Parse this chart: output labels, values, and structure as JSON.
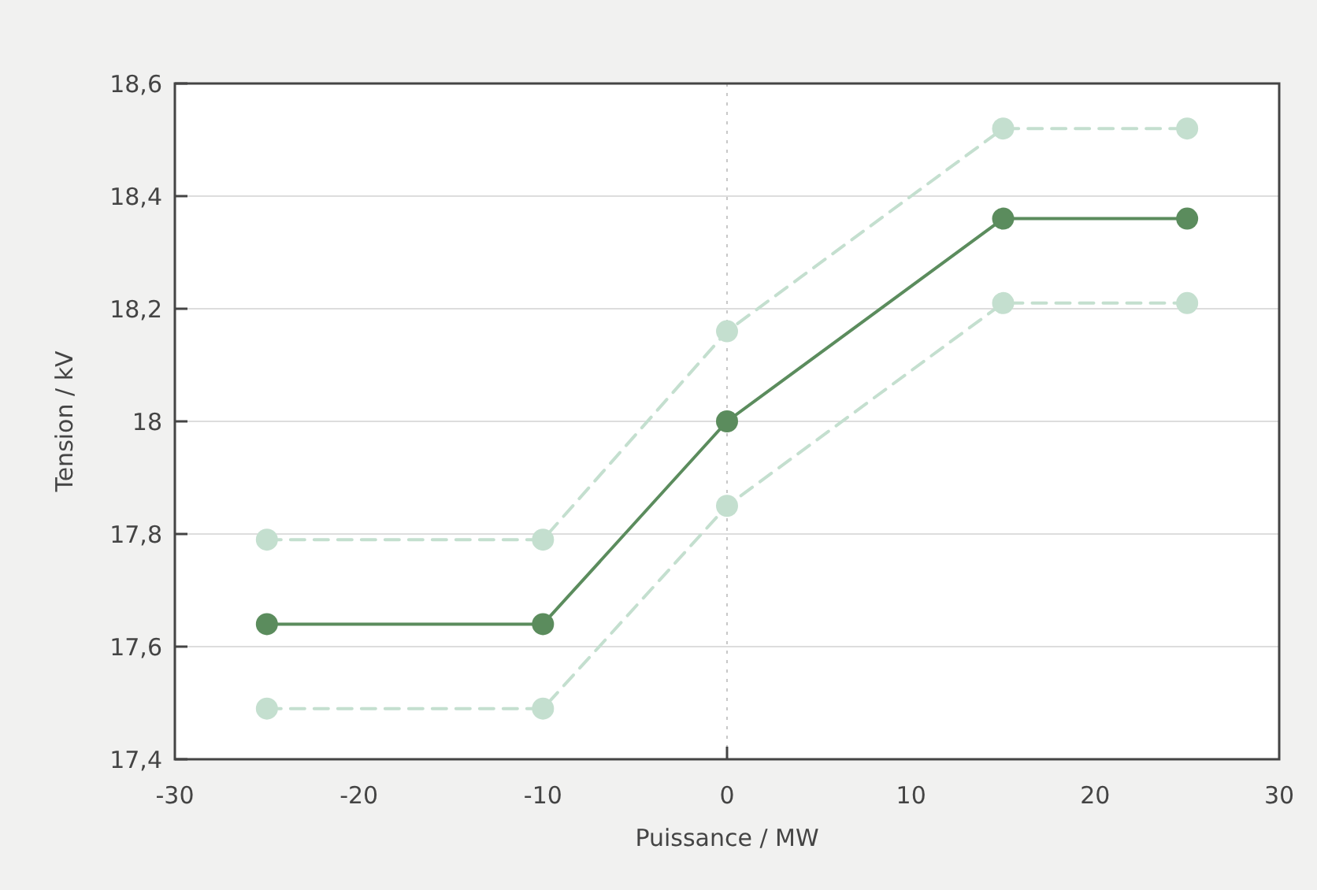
{
  "chart_data": {
    "type": "line",
    "xlabel": "Puissance / MW",
    "ylabel": "Tension / kV",
    "x": [
      -25,
      -10,
      0,
      15,
      25
    ],
    "series": [
      {
        "color": "#c4dfcf",
        "values": [
          17.79,
          17.79,
          18.16,
          18.52,
          18.52
        ],
        "line_style": "dashed"
      },
      {
        "color": "#5b8c5d",
        "values": [
          17.64,
          17.64,
          18.0,
          18.36,
          18.36
        ],
        "line_style": "solid"
      },
      {
        "color": "#c4dfcf",
        "values": [
          17.49,
          17.49,
          17.85,
          18.21,
          18.21
        ],
        "line_style": "dashed"
      }
    ],
    "xlim": [
      -30,
      30
    ],
    "xticks": [
      -30,
      -20,
      -10,
      0,
      10,
      20,
      30
    ],
    "ylim": [
      17.4,
      18.6
    ],
    "yticks": [
      {
        "value": 17.4,
        "label": "17,4"
      },
      {
        "value": 17.6,
        "label": "17,6"
      },
      {
        "value": 17.8,
        "label": "17,8"
      },
      18,
      {
        "value": 18.2,
        "label": "18,2"
      },
      {
        "value": 18.4,
        "label": "18,4"
      },
      {
        "value": 18.6,
        "label": "18,6"
      }
    ],
    "grid": "y",
    "marker": "circle",
    "ref_lines": [
      {
        "axis": "x",
        "value": 0,
        "color": "#c8c8c8",
        "line_style": "dotted"
      }
    ]
  }
}
